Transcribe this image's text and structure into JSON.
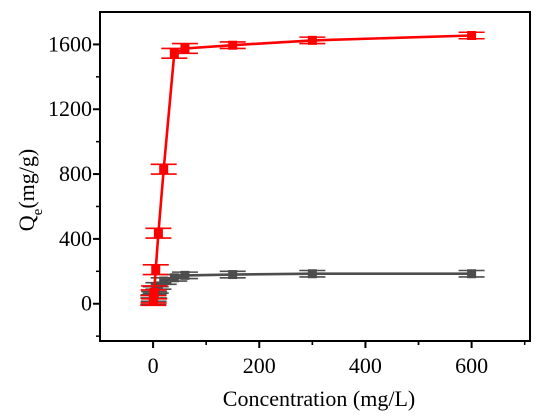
{
  "chart_data": {
    "type": "line",
    "title": "",
    "xlabel": "Concentration (mg/L)",
    "ylabel": {
      "base": "Q",
      "subscript": "e",
      "rest": "(mg/g)"
    },
    "xlim": [
      -100,
      710
    ],
    "ylim": [
      -230,
      1800
    ],
    "x_ticks": [
      0,
      200,
      400,
      600
    ],
    "y_ticks": [
      0,
      400,
      800,
      1200,
      1600
    ],
    "grid": false,
    "legend": "none",
    "series": [
      {
        "color": "#ff0000",
        "marker": "square",
        "points": [
          {
            "x": 0.5,
            "y": 20,
            "err": 30
          },
          {
            "x": 1,
            "y": 45,
            "err": 40
          },
          {
            "x": 2,
            "y": 70,
            "err": 40
          },
          {
            "x": 5,
            "y": 210,
            "err": 30
          },
          {
            "x": 10,
            "y": 435,
            "err": 30
          },
          {
            "x": 20,
            "y": 830,
            "err": 30
          },
          {
            "x": 40,
            "y": 1545,
            "err": 30
          },
          {
            "x": 60,
            "y": 1575,
            "err": 30
          },
          {
            "x": 150,
            "y": 1595,
            "err": 20
          },
          {
            "x": 300,
            "y": 1625,
            "err": 20
          },
          {
            "x": 600,
            "y": 1655,
            "err": 20
          }
        ]
      },
      {
        "color": "#4d4d4d",
        "marker": "square",
        "points": [
          {
            "x": 0.5,
            "y": 15,
            "err": 20
          },
          {
            "x": 1,
            "y": 35,
            "err": 20
          },
          {
            "x": 2,
            "y": 55,
            "err": 20
          },
          {
            "x": 5,
            "y": 85,
            "err": 20
          },
          {
            "x": 10,
            "y": 110,
            "err": 20
          },
          {
            "x": 20,
            "y": 140,
            "err": 20
          },
          {
            "x": 40,
            "y": 160,
            "err": 20
          },
          {
            "x": 60,
            "y": 175,
            "err": 20
          },
          {
            "x": 150,
            "y": 180,
            "err": 20
          },
          {
            "x": 300,
            "y": 185,
            "err": 20
          },
          {
            "x": 600,
            "y": 185,
            "err": 20
          }
        ]
      }
    ]
  }
}
